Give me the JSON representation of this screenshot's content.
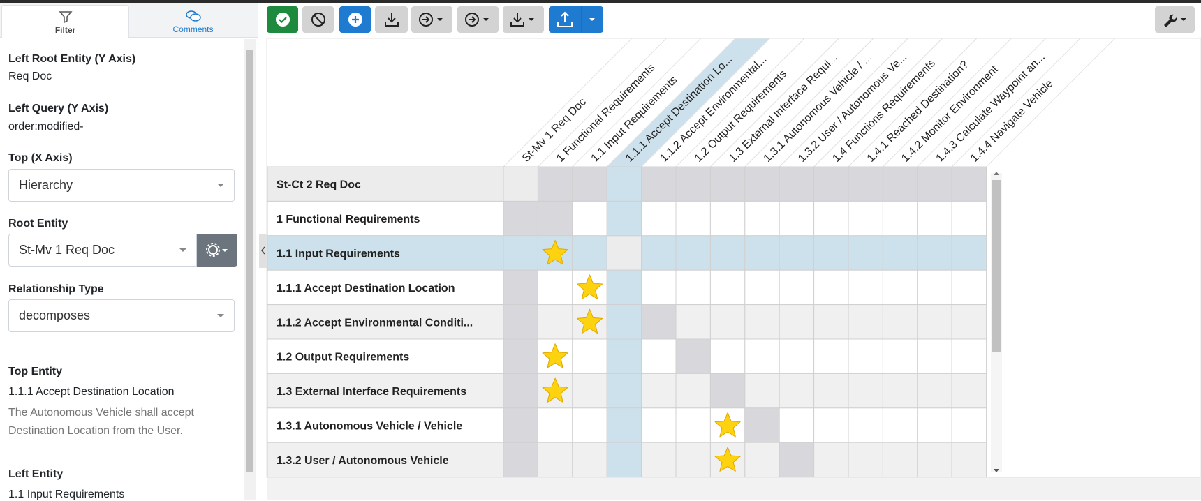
{
  "tabs": [
    "Filter",
    "Comments"
  ],
  "filter": {
    "left_root_entity": {
      "label": "Left Root Entity (Y Axis)",
      "value": "Req Doc"
    },
    "left_query": {
      "label": "Left Query (Y Axis)",
      "value": "order:modified-"
    },
    "top_axis": {
      "label": "Top (X Axis)",
      "value": "Hierarchy"
    },
    "root_entity": {
      "label": "Root Entity",
      "value": "St-Mv 1 Req Doc"
    },
    "relationship_type": {
      "label": "Relationship Type",
      "value": "decomposes"
    },
    "top_entity": {
      "label": "Top Entity",
      "name": "1.1.1 Accept Destination Location",
      "description": "The Autonomous Vehicle shall accept Destination Location from the User."
    },
    "left_entity": {
      "label": "Left Entity",
      "name": "1.1 Input Requirements"
    }
  },
  "matrix": {
    "columns": [
      "St-Mv 1 Req Doc",
      "1 Functional Requirements",
      "1.1 Input Requirements",
      "1.1.1 Accept Destination Lo...",
      "1.1.2 Accept Environmental...",
      "1.2 Output Requirements",
      "1.3 External Interface Requi...",
      "1.3.1 Autonomous Vehicle / ...",
      "1.3.2 User / Autonomous Ve...",
      "1.4 Functions Requirements",
      "1.4.1 Reached Destination?",
      "1.4.2 Monitor Environment",
      "1.4.3 Calculate Waypoint an...",
      "1.4.4 Navigate Vehicle"
    ],
    "rows": [
      {
        "label": "St-Ct 2 Req Doc",
        "links": []
      },
      {
        "label": "1 Functional Requirements",
        "links": []
      },
      {
        "label": "1.1 Input Requirements",
        "links": [
          1
        ]
      },
      {
        "label": "1.1.1 Accept Destination Location",
        "links": [
          2
        ]
      },
      {
        "label": "1.1.2 Accept Environmental Conditi...",
        "links": [
          2
        ]
      },
      {
        "label": "1.2 Output Requirements",
        "links": [
          1
        ]
      },
      {
        "label": "1.3 External Interface Requirements",
        "links": [
          1
        ]
      },
      {
        "label": "1.3.1 Autonomous Vehicle / Vehicle",
        "links": [
          6
        ]
      },
      {
        "label": "1.3.2 User / Autonomous Vehicle",
        "links": [
          6
        ]
      }
    ],
    "selected_row": 2,
    "selected_column": 3
  }
}
